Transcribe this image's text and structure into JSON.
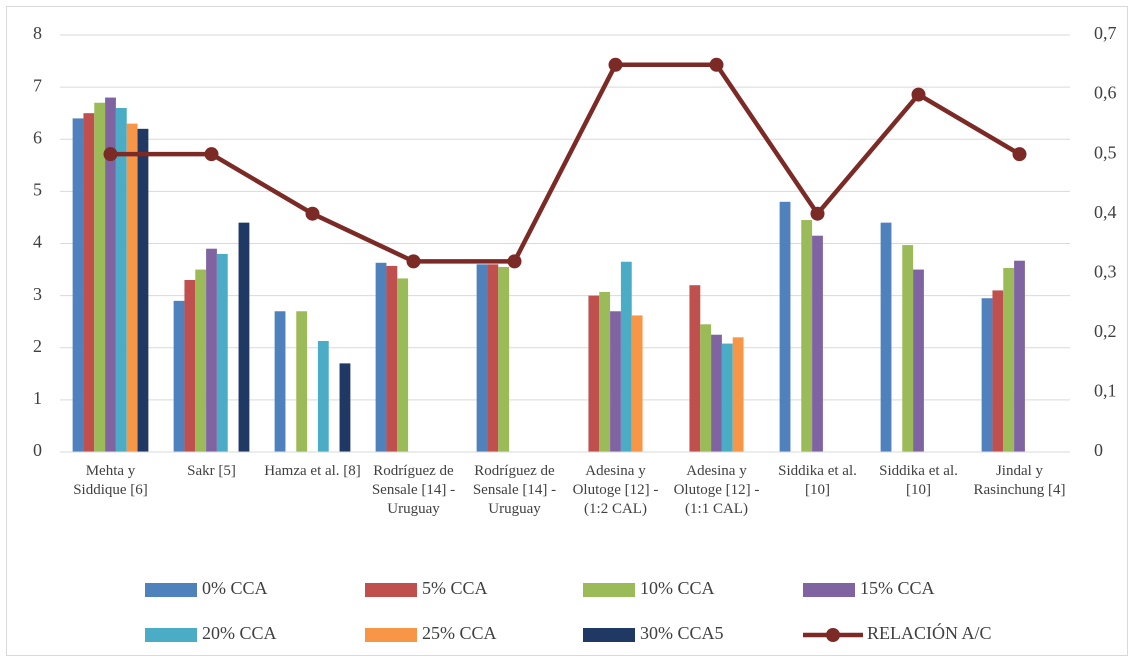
{
  "chart_data": {
    "type": "bar",
    "categories": [
      "Mehta y Siddique [6]",
      "Sakr [5]",
      "Hamza et al. [8]",
      "Rodríguez de Sensale [14] - Uruguay",
      "Rodríguez de Sensale [14] - Uruguay",
      "Adesina y Olutoge [12] - (1:2 CAL)",
      "Adesina y Olutoge [12] - (1:1 CAL)",
      "Siddika et al. [10]",
      "Siddika et al. [10]",
      "Jindal y Rasinchung [4]"
    ],
    "series": [
      {
        "name": "0% CCA",
        "color": "#4f81bd",
        "values": [
          6.4,
          2.9,
          2.7,
          3.63,
          3.6,
          null,
          null,
          4.8,
          4.4,
          2.95
        ]
      },
      {
        "name": "5% CCA",
        "color": "#c0504d",
        "values": [
          6.5,
          3.3,
          null,
          3.57,
          3.6,
          3.0,
          3.2,
          null,
          null,
          3.1
        ]
      },
      {
        "name": "10% CCA",
        "color": "#9bbb59",
        "values": [
          6.7,
          3.5,
          2.7,
          3.33,
          3.55,
          3.07,
          2.45,
          4.45,
          3.97,
          3.53
        ]
      },
      {
        "name": "15% CCA",
        "color": "#8064a2",
        "values": [
          6.8,
          3.9,
          null,
          null,
          null,
          2.7,
          2.25,
          4.15,
          3.5,
          3.67
        ]
      },
      {
        "name": "20% CCA",
        "color": "#4bacc6",
        "values": [
          6.6,
          3.8,
          2.13,
          null,
          null,
          3.65,
          2.08,
          null,
          null,
          null
        ]
      },
      {
        "name": "25% CCA",
        "color": "#f79646",
        "values": [
          6.3,
          null,
          null,
          null,
          null,
          2.62,
          2.2,
          null,
          null,
          null
        ]
      },
      {
        "name": "30% CCA5",
        "color": "#1f3864",
        "values": [
          6.2,
          4.4,
          1.7,
          null,
          null,
          null,
          null,
          null,
          null,
          null
        ]
      },
      {
        "name": "RELACIÓN A/C",
        "color": "#7b2a26",
        "type": "line",
        "axis": "y2",
        "values": [
          0.5,
          0.5,
          0.4,
          0.32,
          0.32,
          0.65,
          0.65,
          0.4,
          0.6,
          0.5
        ]
      }
    ],
    "ylim": [
      0,
      8
    ],
    "yticks": [
      0,
      1,
      2,
      3,
      4,
      5,
      6,
      7,
      8
    ],
    "y2lim": [
      0,
      0.7
    ],
    "y2ticks": [
      0,
      {
        "value": 0.1,
        "label": "0,1"
      },
      {
        "value": 0.2,
        "label": "0,2"
      },
      {
        "value": 0.3,
        "label": "0,3"
      },
      {
        "value": 0.4,
        "label": "0,4"
      },
      {
        "value": 0.5,
        "label": "0,5"
      },
      {
        "value": 0.6,
        "label": "0,6"
      },
      {
        "value": 0.7,
        "label": "0,7"
      }
    ],
    "grid": true,
    "legend": "bottom"
  }
}
